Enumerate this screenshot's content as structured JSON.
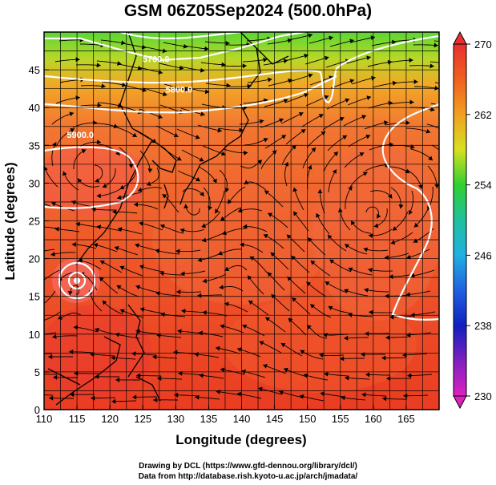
{
  "title": "GSM 06Z05Sep2024 (500.0hPa)",
  "credits": {
    "line1": "Drawing by DCL (https://www.gfd-dennou.org/library/dcl/)",
    "line2": "Data from http://database.rish.kyoto-u.ac.jp/arch/jmadata/"
  },
  "map": {
    "xlabel": "Longitude (degrees)",
    "ylabel": "Latitude  (degrees)",
    "xlim": [
      110,
      170
    ],
    "ylim": [
      0,
      50
    ],
    "x_ticks": [
      110,
      115,
      120,
      125,
      130,
      135,
      140,
      145,
      150,
      155,
      160,
      165
    ],
    "y_ticks": [
      0,
      5,
      10,
      15,
      20,
      25,
      30,
      35,
      40,
      45
    ],
    "grid": true,
    "contour_labels": [
      {
        "text": "5700.0",
        "lon": 127,
        "lat": 46
      },
      {
        "text": "5800.0",
        "lon": 130.5,
        "lat": 42
      },
      {
        "text": "5900.0",
        "lon": 115.5,
        "lat": 36
      }
    ]
  },
  "colorbar": {
    "min": 230,
    "max": 270,
    "tick_labels": [
      "270",
      "262",
      "254",
      "246",
      "238",
      "230"
    ],
    "tick_values": [
      270,
      262,
      254,
      246,
      238,
      230
    ],
    "colors": {
      "low": "#e020c0",
      "blue": "#1020c0",
      "cyan": "#20b0e0",
      "green": "#30d030",
      "yellow": "#e0e030",
      "orange": "#f08020",
      "red": "#e83030"
    }
  },
  "field_colors": {
    "north_green": "#60d830",
    "mid_orange": "#f07830",
    "south_red": "#ec3a25",
    "contour": "#ffffff",
    "streamline": "#000000"
  }
}
